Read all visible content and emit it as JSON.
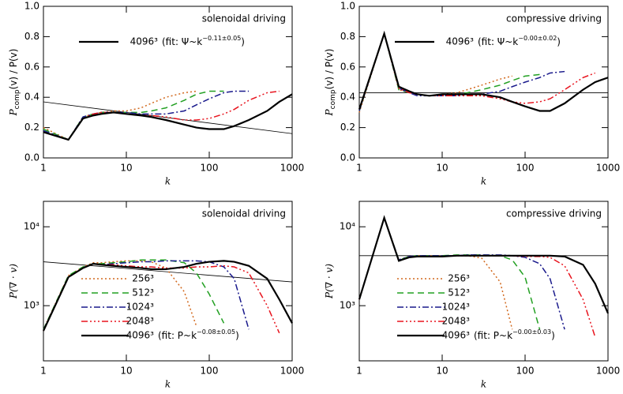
{
  "chart_data": [
    {
      "type": "line",
      "title": "solenoidal driving",
      "xlabel": "k",
      "ylabel": "P",
      "ylabel_sub": "comp",
      "ylabel_rest": "(v) / P(v)",
      "xlog": true,
      "ylog": false,
      "xlim": [
        1,
        1000
      ],
      "ylim": [
        0,
        1.0
      ],
      "xticks": [
        1,
        10,
        100,
        1000
      ],
      "yticks": [
        {
          "value": 0,
          "label": "0.0"
        },
        {
          "value": 0.2,
          "label": "0.2"
        },
        {
          "value": 0.4,
          "label": "0.4"
        },
        {
          "value": 0.6,
          "label": "0.6"
        },
        {
          "value": 0.8,
          "label": "0.8"
        },
        {
          "value": 1.0,
          "label": "1.0"
        }
      ],
      "legend": "upper center",
      "x": [
        1,
        2,
        3,
        4,
        5,
        7,
        10,
        15,
        20,
        30,
        50,
        70,
        100,
        150,
        200,
        300,
        500,
        700,
        1000
      ],
      "series": [
        {
          "color": "#d2691e",
          "dash": "dotted",
          "values": [
            0.2,
            0.12,
            0.27,
            0.29,
            0.3,
            0.31,
            0.31,
            0.33,
            0.36,
            0.4,
            0.43,
            0.44,
            null,
            null,
            null,
            null,
            null,
            null,
            null
          ]
        },
        {
          "color": "#22a022",
          "dash": "dashed",
          "values": [
            0.19,
            0.12,
            0.27,
            0.29,
            0.3,
            0.3,
            0.3,
            0.3,
            0.31,
            0.33,
            0.38,
            0.42,
            0.44,
            0.44,
            null,
            null,
            null,
            null,
            null
          ]
        },
        {
          "color": "#1a1a8c",
          "dash": "dashdot",
          "values": [
            0.18,
            0.12,
            0.27,
            0.29,
            0.3,
            0.3,
            0.3,
            0.29,
            0.29,
            0.29,
            0.31,
            0.35,
            0.39,
            0.43,
            0.44,
            0.44,
            null,
            null,
            null
          ]
        },
        {
          "color": "#e8141e",
          "dash": "dashdotdot",
          "values": [
            0.17,
            0.12,
            0.26,
            0.29,
            0.3,
            0.3,
            0.29,
            0.28,
            0.28,
            0.27,
            0.25,
            0.25,
            0.26,
            0.29,
            0.32,
            0.38,
            0.43,
            0.44,
            null
          ]
        },
        {
          "name": "4096³",
          "color": "#000000",
          "dash": "solid",
          "values": [
            0.17,
            0.12,
            0.26,
            0.28,
            0.29,
            0.3,
            0.29,
            0.28,
            0.27,
            0.25,
            0.22,
            0.2,
            0.19,
            0.19,
            0.21,
            0.25,
            0.31,
            0.37,
            0.42
          ]
        }
      ],
      "fit": {
        "x": [
          1,
          1000
        ],
        "values": [
          0.37,
          0.16
        ],
        "label": "(fit: Ψ~k",
        "exponent": "−0.11±0.05",
        "close": ")"
      }
    },
    {
      "type": "line",
      "title": "compressive driving",
      "xlabel": "k",
      "ylabel": "P",
      "ylabel_sub": "comp",
      "ylabel_rest": "(v) / P(v)",
      "xlog": true,
      "ylog": false,
      "xlim": [
        1,
        1000
      ],
      "ylim": [
        0,
        1.0
      ],
      "xticks": [
        1,
        10,
        100,
        1000
      ],
      "yticks": [
        {
          "value": 0,
          "label": "0.0"
        },
        {
          "value": 0.2,
          "label": "0.2"
        },
        {
          "value": 0.4,
          "label": "0.4"
        },
        {
          "value": 0.6,
          "label": "0.6"
        },
        {
          "value": 0.8,
          "label": "0.8"
        },
        {
          "value": 1.0,
          "label": "1.0"
        }
      ],
      "legend": "upper center",
      "x": [
        1,
        2,
        3,
        4,
        5,
        7,
        10,
        15,
        20,
        30,
        50,
        70,
        100,
        150,
        200,
        300,
        500,
        700,
        1000
      ],
      "series": [
        {
          "color": "#d2691e",
          "dash": "dotted",
          "values": [
            0.3,
            0.82,
            0.45,
            0.43,
            0.42,
            0.41,
            0.42,
            0.43,
            0.45,
            0.48,
            0.52,
            0.54,
            null,
            null,
            null,
            null,
            null,
            null,
            null
          ]
        },
        {
          "color": "#22a022",
          "dash": "dashed",
          "values": [
            0.31,
            0.82,
            0.45,
            0.43,
            0.42,
            0.41,
            0.42,
            0.42,
            0.43,
            0.45,
            0.48,
            0.51,
            0.54,
            0.55,
            null,
            null,
            null,
            null,
            null
          ]
        },
        {
          "color": "#1a1a8c",
          "dash": "dashdot",
          "values": [
            0.31,
            0.82,
            0.46,
            0.43,
            0.41,
            0.41,
            0.41,
            0.41,
            0.42,
            0.42,
            0.44,
            0.47,
            0.5,
            0.53,
            0.56,
            0.57,
            null,
            null,
            null
          ]
        },
        {
          "color": "#e8141e",
          "dash": "dashdotdot",
          "values": [
            0.32,
            0.82,
            0.46,
            0.43,
            0.42,
            0.41,
            0.41,
            0.41,
            0.41,
            0.41,
            0.39,
            0.37,
            0.36,
            0.37,
            0.39,
            0.45,
            0.53,
            0.56,
            null
          ]
        },
        {
          "name": "4096³",
          "color": "#000000",
          "dash": "solid",
          "values": [
            0.32,
            0.82,
            0.47,
            0.44,
            0.42,
            0.41,
            0.42,
            0.42,
            0.42,
            0.42,
            0.4,
            0.37,
            0.34,
            0.31,
            0.31,
            0.36,
            0.45,
            0.5,
            0.53
          ]
        }
      ],
      "fit": {
        "x": [
          1,
          1000
        ],
        "values": [
          0.43,
          0.43
        ],
        "label": "(fit: Ψ~k",
        "exponent": "−0.00±0.02",
        "close": ")"
      }
    },
    {
      "type": "line",
      "title": "solenoidal driving",
      "xlabel": "k",
      "ylabel": "P(∇ · v)",
      "xlog": true,
      "ylog": true,
      "xlim": [
        1,
        1000
      ],
      "ylim": [
        200,
        21000
      ],
      "xticks": [
        1,
        10,
        100,
        1000
      ],
      "yticks": [
        {
          "value": 1000,
          "label": "10³"
        },
        {
          "value": 10000,
          "label": "10⁴"
        }
      ],
      "legend": "lower left",
      "x": [
        1,
        2,
        3,
        4,
        5,
        7,
        10,
        15,
        20,
        30,
        50,
        70,
        100,
        150,
        200,
        300,
        500,
        700,
        1000
      ],
      "series": [
        {
          "name": "256³",
          "color": "#d2691e",
          "dash": "dotted",
          "values": [
            500,
            2400,
            3100,
            3500,
            3500,
            3600,
            3700,
            3700,
            3600,
            3000,
            1500,
            550,
            null,
            null,
            null,
            null,
            null,
            null,
            null
          ]
        },
        {
          "name": "512³",
          "color": "#22a022",
          "dash": "dashed",
          "values": [
            500,
            2400,
            3100,
            3400,
            3400,
            3500,
            3600,
            3800,
            3800,
            3800,
            3500,
            2600,
            1400,
            600,
            null,
            null,
            null,
            null,
            null
          ]
        },
        {
          "name": "1024³",
          "color": "#1a1a8c",
          "dash": "dashdot",
          "values": [
            490,
            2300,
            3000,
            3400,
            3300,
            3400,
            3500,
            3600,
            3600,
            3700,
            3700,
            3700,
            3600,
            3100,
            2200,
            500,
            null,
            null,
            null
          ]
        },
        {
          "name": "2048³",
          "color": "#e8141e",
          "dash": "dashdotdot",
          "values": [
            480,
            2300,
            3000,
            3400,
            3300,
            3300,
            3200,
            3100,
            3100,
            3000,
            3000,
            3100,
            3100,
            3200,
            3100,
            2600,
            1000,
            450,
            null
          ]
        },
        {
          "name": "4096³",
          "color": "#000000",
          "dash": "solid",
          "values": [
            480,
            2300,
            3000,
            3400,
            3300,
            3200,
            3100,
            3000,
            2900,
            2900,
            3100,
            3400,
            3600,
            3700,
            3600,
            3200,
            2200,
            1200,
            600
          ]
        }
      ],
      "fit": {
        "x": [
          1,
          1000
        ],
        "values": [
          3600,
          2000
        ],
        "label": "(fit: P~k",
        "exponent": "−0.08±0.05",
        "close": ")"
      }
    },
    {
      "type": "line",
      "title": "compressive driving",
      "xlabel": "k",
      "ylabel": "P(∇ · v)",
      "xlog": true,
      "ylog": true,
      "xlim": [
        1,
        1000
      ],
      "ylim": [
        200,
        21000
      ],
      "xticks": [
        1,
        10,
        100,
        1000
      ],
      "yticks": [
        {
          "value": 1000,
          "label": "10³"
        },
        {
          "value": 10000,
          "label": "10⁴"
        }
      ],
      "legend": "lower left",
      "x": [
        1,
        2,
        3,
        4,
        5,
        7,
        10,
        15,
        20,
        30,
        50,
        70,
        100,
        150,
        200,
        300,
        500,
        700,
        1000
      ],
      "series": [
        {
          "name": "256³",
          "color": "#d2691e",
          "dash": "dotted",
          "values": [
            1200,
            13000,
            3800,
            4200,
            4300,
            4300,
            4300,
            4300,
            4300,
            4000,
            2000,
            500,
            null,
            null,
            null,
            null,
            null,
            null,
            null
          ]
        },
        {
          "name": "512³",
          "color": "#22a022",
          "dash": "dashed",
          "values": [
            1200,
            13000,
            3800,
            4200,
            4300,
            4300,
            4300,
            4400,
            4400,
            4400,
            4300,
            3800,
            2300,
            500,
            null,
            null,
            null,
            null,
            null
          ]
        },
        {
          "name": "1024³",
          "color": "#1a1a8c",
          "dash": "dashdot",
          "values": [
            1200,
            13000,
            3800,
            4200,
            4300,
            4300,
            4300,
            4300,
            4400,
            4400,
            4400,
            4300,
            4100,
            3400,
            2200,
            500,
            null,
            null,
            null
          ]
        },
        {
          "name": "2048³",
          "color": "#e8141e",
          "dash": "dashdotdot",
          "values": [
            1200,
            13000,
            3700,
            4100,
            4200,
            4200,
            4200,
            4300,
            4300,
            4300,
            4300,
            4300,
            4200,
            4200,
            4100,
            3200,
            1200,
            400,
            null
          ]
        },
        {
          "name": "4096³",
          "color": "#000000",
          "dash": "solid",
          "values": [
            1200,
            13000,
            3700,
            4100,
            4200,
            4200,
            4200,
            4300,
            4300,
            4300,
            4300,
            4300,
            4300,
            4300,
            4300,
            4200,
            3300,
            1900,
            800
          ]
        }
      ],
      "fit": {
        "x": [
          1,
          1000
        ],
        "values": [
          4300,
          4300
        ],
        "label": "(fit: P~k",
        "exponent": "−0.00±0.03",
        "close": ")"
      }
    }
  ]
}
